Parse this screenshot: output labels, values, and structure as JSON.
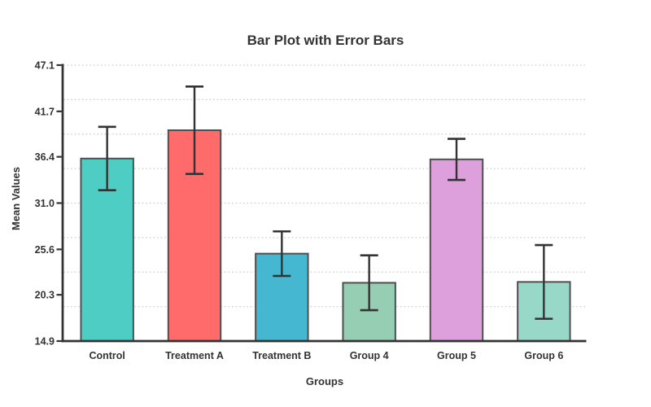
{
  "chart_data": {
    "type": "bar",
    "title": "Bar Plot with Error Bars",
    "xlabel": "Groups",
    "ylabel": "Mean Values",
    "categories": [
      "Control",
      "Treatment A",
      "Treatment B",
      "Group 4",
      "Group 5",
      "Group 6"
    ],
    "values": [
      36.2,
      39.5,
      25.1,
      21.7,
      36.1,
      21.8
    ],
    "errors": [
      3.7,
      5.1,
      2.6,
      3.2,
      2.4,
      4.3
    ],
    "bar_colors": [
      "#4ECDC4",
      "#FF6B6B",
      "#45B7D1",
      "#96CEB4",
      "#DDA0DD",
      "#98D8C8"
    ],
    "ylim": [
      14.9,
      47.1
    ],
    "yticks": [
      14.9,
      20.3,
      25.6,
      31.0,
      36.4,
      41.7,
      47.1
    ],
    "ytick_labels": [
      "14.9",
      "20.3",
      "25.6",
      "31.0",
      "36.4",
      "41.7",
      "47.1"
    ],
    "bar_width_frac": 0.6,
    "grid": {
      "on": true,
      "divisions": 8,
      "style": "dotted",
      "color": "#cccccc"
    },
    "legend": "none",
    "colors": {
      "axis": "#333333",
      "error_bar": "#333333",
      "bar_edge": "#4f4f4f",
      "text": "#333333",
      "background": "#ffffff"
    }
  }
}
